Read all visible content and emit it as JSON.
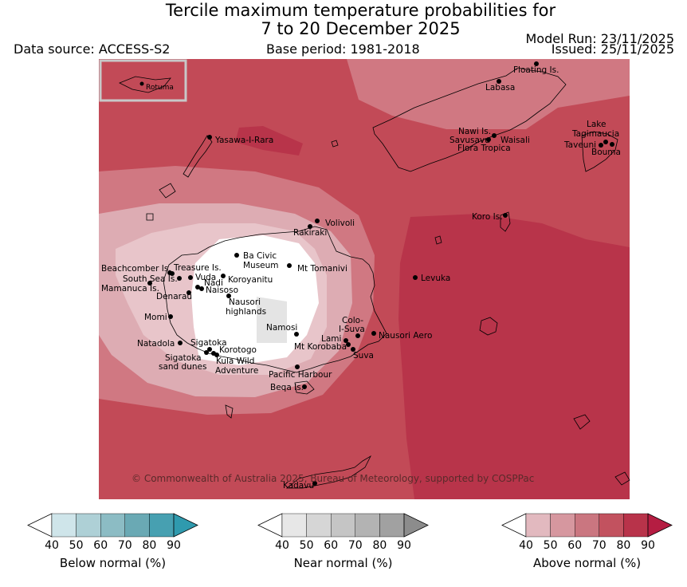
{
  "title": {
    "line1": "Tercile maximum temperature probabilities for",
    "line2": "7 to 20 December 2025"
  },
  "header": {
    "data_source": "Data source: ACCESS-S2",
    "base_period": "Base period: 1981-2018",
    "model_run": "Model Run: 23/11/2025",
    "issued": "Issued: 25/11/2025"
  },
  "map": {
    "inset_label": "Rotuma",
    "copyright": "© Commonwealth of Australia 2025, Bureau of Meteorology, supported by COSPPac",
    "places": {
      "floating_is": "Floating Is.",
      "labasa": "Labasa",
      "yasawa": "Yasawa-I-Rara",
      "nawi": "Nawi Is.",
      "savusavu": "Savusavu",
      "waisali": "Waisali",
      "flora": "Flora Tropica",
      "lake": "Lake",
      "tagimaucia": "Tagimaucia",
      "taveuni": "Taveuni",
      "bouma": "Bouma",
      "koro": "Koro Is.",
      "volivoli": "Volivoli",
      "rakiraki": "Rakiraki",
      "ba1": "Ba Civic",
      "ba2": "Museum",
      "tomanivi": "Mt Tomanivi",
      "levuka": "Levuka",
      "beachcomber": "Beachcomber Is.",
      "treasure": "Treasure Is.",
      "south_sea": "South Sea Is.",
      "vuda": "Vuda",
      "koroyanitu": "Koroyanitu",
      "nadi": "Nadi",
      "mamanuca": "Mamanuca Is.",
      "naisoso": "Naisoso",
      "denarau": "Denarau",
      "nausori_hl1": "Nausori",
      "nausori_hl2": "highlands",
      "momi": "Momi",
      "namosi": "Namosi",
      "colo1": "Colo-",
      "colo2": "I-Suva",
      "lami": "Lami",
      "nausori_aero": "Nausori Aero",
      "korobaba": "Mt Korobaba",
      "suva": "Suva",
      "natadola": "Natadola",
      "sigatoka": "Sigatoka",
      "korotogo": "Korotogo",
      "sigatoka_sd1": "Sigatoka",
      "sigatoka_sd2": "sand dunes",
      "kula1": "Kula Wild",
      "kula2": "Adventure",
      "pacific_harbour": "Pacific Harbour",
      "beqa": "Beqa Is.",
      "kadavu": "Kadavu"
    }
  },
  "colorbars": [
    {
      "title": "Below normal (%)",
      "ticks": [
        "40",
        "50",
        "60",
        "70",
        "80",
        "90"
      ],
      "colors": [
        "#ffffff",
        "#cfe5ea",
        "#aed0d6",
        "#8cbcc4",
        "#6aa9b4",
        "#47a0b1",
        "#2f9aae"
      ]
    },
    {
      "title": "Near normal (%)",
      "ticks": [
        "40",
        "50",
        "60",
        "70",
        "80",
        "90"
      ],
      "colors": [
        "#ffffff",
        "#e7e7e7",
        "#d6d6d6",
        "#c5c5c5",
        "#b3b3b3",
        "#a1a1a1",
        "#8c8c8c"
      ]
    },
    {
      "title": "Above normal (%)",
      "ticks": [
        "40",
        "50",
        "60",
        "70",
        "80",
        "90"
      ],
      "colors": [
        "#ffffff",
        "#e2b9bf",
        "#d6979f",
        "#ca7680",
        "#c2525f",
        "#b8334a",
        "#b51d42"
      ]
    }
  ]
}
